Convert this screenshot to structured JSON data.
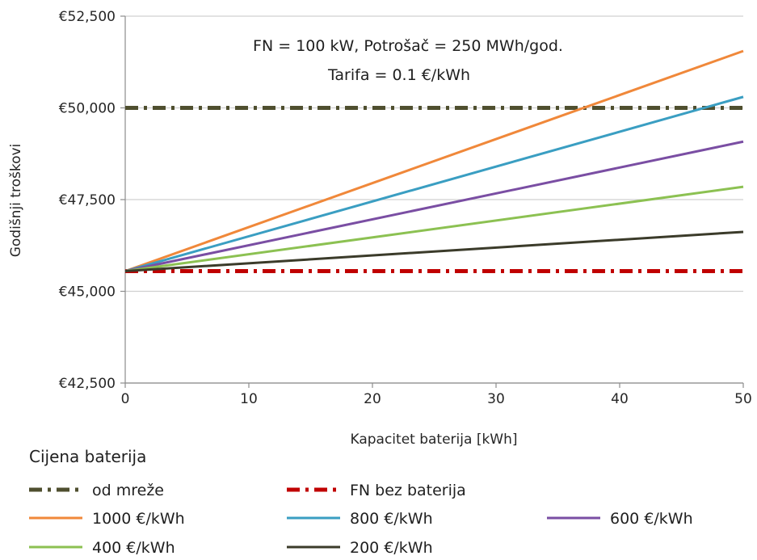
{
  "chart_data": {
    "type": "line",
    "title": "",
    "annotations": [
      "FN = 100 kW, Potrošač = 250 MWh/god.",
      "Tarifa = 0.1 €/kWh"
    ],
    "xlabel": "Kapacitet baterija [kWh]",
    "ylabel": "Godišnji troškovi",
    "xlim": [
      0,
      50
    ],
    "ylim": [
      42500,
      52500
    ],
    "x_ticks": [
      0,
      10,
      20,
      30,
      40,
      50
    ],
    "x_tick_labels": [
      "0",
      "10",
      "20",
      "30",
      "40",
      "50"
    ],
    "y_ticks": [
      42500,
      45000,
      47500,
      50000,
      52500
    ],
    "y_tick_labels": [
      "€42,500",
      "€45,000",
      "€47,500",
      "€50,000",
      "€52,500"
    ],
    "grid": true,
    "legend_title": "Cijena baterija",
    "legend_position": "bottom",
    "x": [
      0,
      50
    ],
    "series": [
      {
        "name": "od mreže",
        "values": [
          50000,
          50000
        ],
        "color": "#4f4f2f",
        "style": "dash-dot"
      },
      {
        "name": "FN bez baterija",
        "values": [
          45550,
          45550
        ],
        "color": "#c00000",
        "style": "dash-dot"
      },
      {
        "name": "1000 €/kWh",
        "values": [
          45550,
          51550
        ],
        "color": "#f0883a",
        "style": "solid"
      },
      {
        "name": "800 €/kWh",
        "values": [
          45550,
          50300
        ],
        "color": "#3a9ec2",
        "style": "solid"
      },
      {
        "name": "600 €/kWh",
        "values": [
          45550,
          49080
        ],
        "color": "#7a4ea3",
        "style": "solid"
      },
      {
        "name": "400 €/kWh",
        "values": [
          45550,
          47850
        ],
        "color": "#8cc152",
        "style": "solid"
      },
      {
        "name": "200 €/kWh",
        "values": [
          45550,
          46620
        ],
        "color": "#3b3b2a",
        "style": "solid"
      }
    ]
  }
}
